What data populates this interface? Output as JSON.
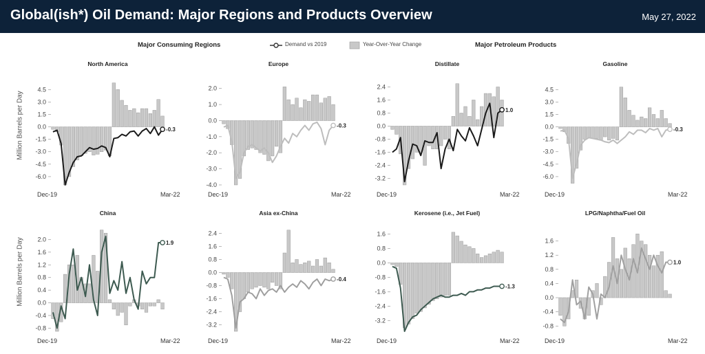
{
  "header": {
    "title": "Global(ish*) Oil Demand: Major Regions and Products Overview",
    "date": "May 27, 2022"
  },
  "subtitles": {
    "regions": "Major Consuming Regions",
    "products": "Major Petroleum Products"
  },
  "legend": {
    "demand": "Demand vs 2019",
    "yoy": "Year-Over-Year Change"
  },
  "ylabel": "Million Barrels per Day",
  "colors": {
    "header": "#0d2239",
    "bar": "#c8c8c8",
    "bar_stroke": "#9a9a9a"
  },
  "chart_data": [
    {
      "type": "bar",
      "title": "North America",
      "x_start": "Dec-19",
      "x_end": "Mar-22",
      "yticks": [
        "4.5",
        "3.0",
        "1.5",
        "0.0",
        "-1.5",
        "-3.0",
        "-4.5",
        "-6.0"
      ],
      "ylim": [
        -7.0,
        5.6
      ],
      "line_color": "#1a1a1a",
      "end_label": "-0.3",
      "series": [
        {
          "name": "Year-Over-Year Change",
          "kind": "bar",
          "values": [
            -0.3,
            -0.6,
            -2.2,
            -7.0,
            -6.0,
            -4.8,
            -4.0,
            -3.5,
            -3.2,
            -3.0,
            -3.4,
            -3.3,
            -3.0,
            -2.8,
            -3.5,
            5.3,
            4.5,
            3.2,
            2.6,
            2.0,
            2.2,
            1.7,
            2.2,
            2.2,
            1.6,
            2.0,
            3.3,
            1.3
          ]
        },
        {
          "name": "Demand vs 2019",
          "kind": "line",
          "values": [
            -0.6,
            -0.4,
            -2.0,
            -7.0,
            -5.5,
            -4.3,
            -3.6,
            -3.5,
            -3.0,
            -2.5,
            -2.7,
            -2.6,
            -2.3,
            -2.5,
            -3.6,
            -1.4,
            -1.3,
            -0.9,
            -1.1,
            -0.6,
            -0.5,
            -1.1,
            -0.5,
            -0.2,
            -0.8,
            0.0,
            -1.0,
            -0.3
          ]
        }
      ]
    },
    {
      "type": "bar",
      "title": "Europe",
      "x_start": "Dec-19",
      "x_end": "Mar-22",
      "yticks": [
        "2.0",
        "1.0",
        "0.0",
        "-1.0",
        "-2.0",
        "-3.0",
        "-4.0"
      ],
      "ylim": [
        -4.0,
        2.5
      ],
      "line_color": "#bdbdbd",
      "end_label": "-0.3",
      "series": [
        {
          "name": "Year-Over-Year Change",
          "kind": "bar",
          "values": [
            -0.2,
            -0.5,
            -1.5,
            -4.0,
            -3.6,
            -2.2,
            -1.8,
            -1.7,
            -1.8,
            -2.0,
            -2.1,
            -2.5,
            -2.2,
            -1.6,
            -2.0,
            2.1,
            1.3,
            1.0,
            1.4,
            0.8,
            1.3,
            1.2,
            1.6,
            1.6,
            1.1,
            1.4,
            1.5,
            1.0
          ]
        },
        {
          "name": "Demand vs 2019",
          "kind": "line",
          "values": [
            -0.4,
            -0.3,
            -1.3,
            -3.6,
            -3.2,
            -2.0,
            -1.6,
            -1.5,
            -1.7,
            -1.9,
            -1.7,
            -2.0,
            -2.6,
            -2.2,
            -1.6,
            -1.1,
            -1.4,
            -0.8,
            -1.0,
            -0.6,
            -0.3,
            -0.6,
            -0.2,
            -0.1,
            -0.5,
            -1.5,
            -0.6,
            -0.3
          ]
        }
      ]
    },
    {
      "type": "bar",
      "title": "Distillate",
      "x_start": "Dec-19",
      "x_end": "Mar-22",
      "yticks": [
        "2.4",
        "1.6",
        "0.8",
        "0.0",
        "-0.8",
        "-1.6",
        "-2.4",
        "-3.2"
      ],
      "ylim": [
        -3.6,
        2.8
      ],
      "line_color": "#1a1a1a",
      "end_label": "1.0",
      "series": [
        {
          "name": "Year-Over-Year Change",
          "kind": "bar",
          "values": [
            -0.2,
            -0.5,
            -1.7,
            -3.6,
            -2.6,
            -2.0,
            -1.6,
            -1.6,
            -2.4,
            -1.2,
            -1.4,
            -1.4,
            -1.2,
            -0.8,
            -1.4,
            0.6,
            2.6,
            0.8,
            1.2,
            0.6,
            1.6,
            0.4,
            1.2,
            2.0,
            2.0,
            1.8,
            2.4,
            1.6
          ]
        },
        {
          "name": "Demand vs 2019",
          "kind": "line",
          "values": [
            -1.6,
            -1.4,
            -0.7,
            -3.4,
            -2.1,
            -1.1,
            -1.2,
            -1.8,
            -0.9,
            -1.0,
            -1.0,
            -0.4,
            -2.6,
            -1.4,
            -0.8,
            -1.5,
            -0.2,
            -0.6,
            -0.9,
            -0.1,
            -0.6,
            -1.2,
            -0.2,
            0.8,
            1.4,
            -0.7,
            0.8,
            1.0
          ]
        }
      ]
    },
    {
      "type": "bar",
      "title": "Gasoline",
      "x_start": "Dec-19",
      "x_end": "Mar-22",
      "yticks": [
        "4.5",
        "3.0",
        "1.5",
        "0.0",
        "-1.5",
        "-3.0",
        "-4.5",
        "-6.0"
      ],
      "ylim": [
        -7.0,
        5.6
      ],
      "line_color": "#bdbdbd",
      "end_label": "-0.3",
      "series": [
        {
          "name": "Year-Over-Year Change",
          "kind": "bar",
          "values": [
            -0.2,
            -0.6,
            -2.0,
            -6.8,
            -5.0,
            -2.8,
            -1.5,
            -1.3,
            -1.4,
            -1.4,
            -1.6,
            -1.2,
            -1.6,
            -1.4,
            -1.6,
            4.8,
            3.5,
            2.0,
            1.4,
            0.8,
            1.2,
            1.0,
            2.3,
            1.5,
            1.0,
            2.0,
            1.0,
            0.4
          ]
        },
        {
          "name": "Demand vs 2019",
          "kind": "line",
          "values": [
            -0.5,
            -0.4,
            -1.4,
            -6.2,
            -4.4,
            -2.2,
            -1.6,
            -1.3,
            -1.4,
            -1.5,
            -1.6,
            -1.8,
            -1.9,
            -1.6,
            -2.0,
            -1.6,
            -1.2,
            -0.6,
            -0.9,
            -0.4,
            -0.4,
            -0.7,
            -0.2,
            -0.4,
            -0.2,
            -1.2,
            -0.4,
            -0.3
          ]
        }
      ]
    },
    {
      "type": "bar",
      "title": "China",
      "x_start": "Dec-19",
      "x_end": "Mar-22",
      "yticks": [
        "2.0",
        "1.6",
        "1.2",
        "0.8",
        "0.4",
        "0.0",
        "-0.4",
        "-0.8"
      ],
      "ylim": [
        -0.9,
        2.4
      ],
      "line_color": "#3d5a50",
      "end_label": "1.9",
      "series": [
        {
          "name": "Year-Over-Year Change",
          "kind": "bar",
          "values": [
            -0.5,
            -0.9,
            -0.6,
            0.9,
            1.2,
            1.2,
            1.5,
            0.8,
            0.6,
            0.6,
            1.5,
            1.0,
            2.3,
            2.2,
            0.1,
            -0.2,
            -0.4,
            -0.3,
            -0.7,
            -0.1,
            0.1,
            -0.1,
            -0.2,
            -0.3,
            -0.1,
            -0.1,
            0.1,
            -0.2
          ]
        },
        {
          "name": "Demand vs 2019",
          "kind": "line",
          "values": [
            -0.3,
            -0.8,
            -0.1,
            -0.5,
            0.9,
            1.7,
            0.4,
            0.8,
            0.2,
            1.2,
            0.1,
            -0.4,
            1.6,
            2.1,
            0.3,
            0.7,
            0.4,
            1.3,
            0.3,
            0.8,
            0.1,
            -0.2,
            1.0,
            0.6,
            0.8,
            0.8,
            1.9,
            1.9
          ]
        }
      ]
    },
    {
      "type": "bar",
      "title": "Asia ex-China",
      "x_start": "Dec-19",
      "x_end": "Mar-22",
      "yticks": [
        "2.4",
        "1.6",
        "0.8",
        "0.0",
        "-0.8",
        "-1.6",
        "-2.4",
        "-3.2"
      ],
      "ylim": [
        -3.6,
        2.8
      ],
      "line_color": "#9e9e9e",
      "end_label": "-0.4",
      "series": [
        {
          "name": "Year-Over-Year Change",
          "kind": "bar",
          "values": [
            -0.1,
            -0.3,
            -1.0,
            -3.6,
            -2.4,
            -1.6,
            -1.2,
            -1.0,
            -0.9,
            -0.8,
            -0.9,
            -1.0,
            -0.6,
            -0.8,
            -1.0,
            1.2,
            2.6,
            0.6,
            0.8,
            0.5,
            0.6,
            0.7,
            0.4,
            0.8,
            0.4,
            0.9,
            0.6,
            0.2
          ]
        },
        {
          "name": "Demand vs 2019",
          "kind": "line",
          "values": [
            -0.3,
            -0.4,
            -1.4,
            -3.4,
            -1.8,
            -1.6,
            -1.2,
            -1.3,
            -1.6,
            -1.0,
            -1.4,
            -1.1,
            -1.0,
            -1.2,
            -0.8,
            -1.2,
            -0.9,
            -0.7,
            -0.9,
            -0.5,
            -0.7,
            -1.0,
            -0.6,
            -0.4,
            -0.8,
            -0.4,
            -0.5,
            -0.4
          ]
        }
      ]
    },
    {
      "type": "bar",
      "title": "Kerosene (i.e., Jet Fuel)",
      "x_start": "Dec-19",
      "x_end": "Mar-22",
      "yticks": [
        "1.6",
        "0.8",
        "0.0",
        "-0.8",
        "-1.6",
        "-2.4",
        "-3.2"
      ],
      "ylim": [
        -3.8,
        2.0
      ],
      "line_color": "#3d5a50",
      "end_label": "-1.3",
      "series": [
        {
          "name": "Year-Over-Year Change",
          "kind": "bar",
          "values": [
            -0.1,
            -0.2,
            -1.2,
            -3.6,
            -3.4,
            -3.1,
            -2.8,
            -2.7,
            -2.5,
            -2.3,
            -2.1,
            -2.0,
            -1.9,
            -1.8,
            -1.8,
            1.7,
            1.5,
            1.2,
            1.0,
            0.9,
            0.8,
            0.5,
            0.3,
            0.4,
            0.5,
            0.6,
            0.7,
            0.6
          ]
        },
        {
          "name": "Demand vs 2019",
          "kind": "line",
          "values": [
            -0.2,
            -0.3,
            -1.4,
            -3.8,
            -3.3,
            -3.0,
            -2.9,
            -2.6,
            -2.4,
            -2.2,
            -2.0,
            -1.9,
            -1.8,
            -1.9,
            -1.9,
            -1.8,
            -1.8,
            -1.7,
            -1.8,
            -1.6,
            -1.6,
            -1.5,
            -1.5,
            -1.4,
            -1.4,
            -1.3,
            -1.3,
            -1.3
          ]
        }
      ]
    },
    {
      "type": "bar",
      "title": "LPG/Naphtha/Fuel Oil",
      "x_start": "Dec-19",
      "x_end": "Mar-22",
      "yticks": [
        "1.6",
        "1.2",
        "0.8",
        "0.4",
        "0.0",
        "-0.4",
        "-0.8"
      ],
      "ylim": [
        -0.95,
        2.0
      ],
      "line_color": "#a0a0a0",
      "end_label": "1.0",
      "series": [
        {
          "name": "Year-Over-Year Change",
          "kind": "bar",
          "values": [
            -0.5,
            -0.8,
            -0.6,
            0.2,
            0.5,
            -0.3,
            -0.6,
            -0.5,
            0.2,
            0.4,
            -0.2,
            0.6,
            1.0,
            1.7,
            1.1,
            0.8,
            1.4,
            1.1,
            1.5,
            1.8,
            1.6,
            1.5,
            1.2,
            0.9,
            1.2,
            1.3,
            0.2,
            0.1
          ]
        },
        {
          "name": "Demand vs 2019",
          "kind": "line",
          "values": [
            -0.6,
            -0.7,
            -0.4,
            0.5,
            -0.2,
            -0.1,
            -0.6,
            0.3,
            0.1,
            -0.6,
            0.1,
            0.0,
            0.3,
            0.9,
            0.4,
            1.2,
            0.8,
            0.5,
            1.1,
            0.7,
            1.4,
            1.1,
            0.8,
            1.2,
            0.9,
            0.7,
            1.0,
            1.0
          ]
        }
      ]
    }
  ]
}
